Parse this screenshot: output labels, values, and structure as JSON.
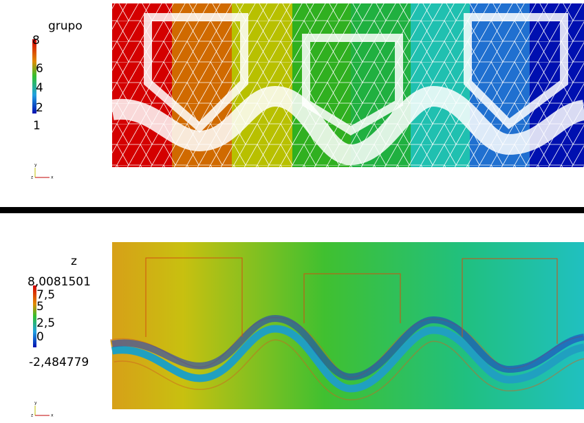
{
  "top_panel": {
    "legend": {
      "title": "grupo",
      "ticks": [
        "8",
        "6",
        "4",
        "2",
        "1"
      ]
    },
    "triad": {
      "y": "y",
      "z": "z",
      "x": "x"
    }
  },
  "bottom_panel": {
    "legend": {
      "title": "z",
      "max": "8,0081501",
      "ticks": [
        "7,5",
        "5",
        "2,5",
        "0"
      ],
      "min": "-2,484779"
    },
    "triad": {
      "y": "y",
      "z": "z",
      "x": "x"
    }
  }
}
